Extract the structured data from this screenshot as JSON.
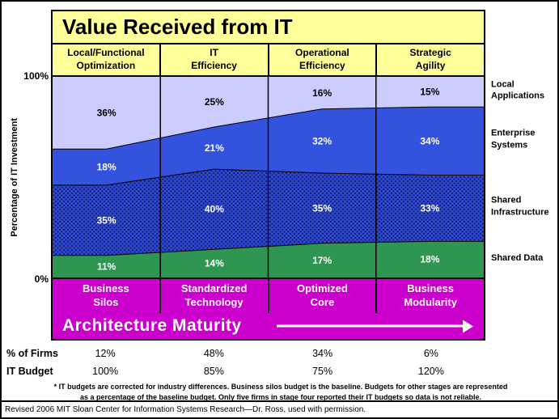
{
  "y_axis": {
    "label": "Percentage of IT Investment",
    "top_tick": "100%",
    "bottom_tick": "0%"
  },
  "columns": [
    "Local/Functional\nOptimization",
    "IT\nEfficiency",
    "Operational\nEfficiency",
    "Strategic\nAgility"
  ],
  "stages": [
    "Business\nSilos",
    "Standardized\nTechnology",
    "Optimized\nCore",
    "Business\nModularity"
  ],
  "banner": {
    "label": "Architecture Maturity"
  },
  "rows": {
    "firms": {
      "label": "% of Firms",
      "values": [
        "12%",
        "48%",
        "34%",
        "6%"
      ]
    },
    "budget": {
      "label": "IT Budget",
      "values": [
        "100%",
        "85%",
        "75%",
        "120%"
      ]
    }
  },
  "footnote": "* IT budgets are corrected for industry differences. Business silos budget is the baseline. Budgets for other stages are represented\nas a percentage of the baseline budget. Only five firms in stage four reported their IT budgets so data is not reliable.",
  "credit": "Revised 2006 MIT Sloan Center for Information Systems Research—Dr. Ross, used with permission.",
  "chart_data": {
    "type": "area",
    "stacked": true,
    "title": "Value Received from IT",
    "xlabel": "Architecture Maturity",
    "ylabel": "Percentage of IT Investment",
    "ylim": [
      0,
      100
    ],
    "grid": false,
    "legend_position": "right",
    "categories": [
      "Local/Functional Optimization",
      "IT Efficiency",
      "Operational Efficiency",
      "Strategic Agility"
    ],
    "series": [
      {
        "name": "Local Applications",
        "values": [
          36,
          25,
          16,
          15
        ],
        "color": "#ccccff",
        "label_color": "#000000"
      },
      {
        "name": "Enterprise Systems",
        "values": [
          18,
          21,
          32,
          34
        ],
        "color": "#3353de",
        "label_color": "#ffffff"
      },
      {
        "name": "Shared Infrastructure",
        "values": [
          35,
          40,
          35,
          33
        ],
        "color": "#2e49d0",
        "label_color": "#ffffff",
        "pattern": "dots",
        "dot_color": "#101c70"
      },
      {
        "name": "Shared Data",
        "values": [
          11,
          14,
          17,
          18
        ],
        "color": "#2f9552",
        "label_color": "#ffffff"
      }
    ]
  }
}
